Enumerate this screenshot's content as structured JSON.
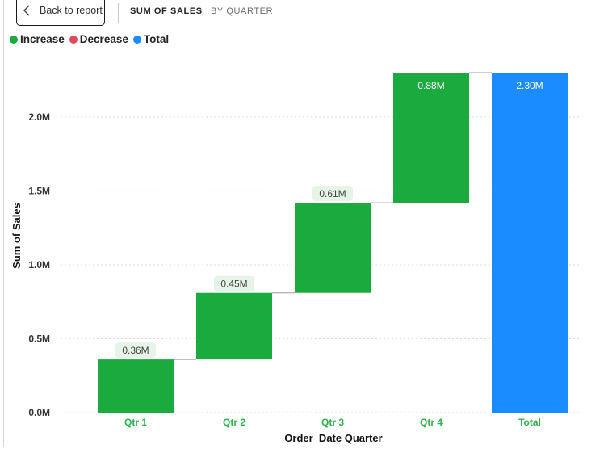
{
  "header": {
    "back_label": "Back to report",
    "crumb_1": "SUM OF SALES",
    "crumb_2": "BY QUARTER"
  },
  "legend": [
    {
      "label": "Increase",
      "color": "#1aaa3e"
    },
    {
      "label": "Decrease",
      "color": "#e04a5a"
    },
    {
      "label": "Total",
      "color": "#1a8cff"
    }
  ],
  "chart_data": {
    "type": "bar",
    "subtype": "waterfall",
    "xlabel": "Order_Date Quarter",
    "ylabel": "Sum of Sales",
    "ylim": [
      0,
      2.3
    ],
    "yticks": [
      {
        "value": 0,
        "label": "0.0M"
      },
      {
        "value": 0.5,
        "label": "0.5M"
      },
      {
        "value": 1.0,
        "label": "1.0M"
      },
      {
        "value": 1.5,
        "label": "1.5M"
      },
      {
        "value": 2.0,
        "label": "2.0M"
      }
    ],
    "grid": true,
    "legend_position": "top-left",
    "colors": {
      "increase": "#1aaa3e",
      "decrease": "#e04a5a",
      "total": "#1a8cff"
    },
    "categories": [
      "Qtr 1",
      "Qtr 2",
      "Qtr 3",
      "Qtr 4",
      "Total"
    ],
    "bars": [
      {
        "category": "Qtr 1",
        "kind": "increase",
        "start": 0.0,
        "end": 0.36,
        "label": "0.36M"
      },
      {
        "category": "Qtr 2",
        "kind": "increase",
        "start": 0.36,
        "end": 0.81,
        "label": "0.45M"
      },
      {
        "category": "Qtr 3",
        "kind": "increase",
        "start": 0.81,
        "end": 1.42,
        "label": "0.61M"
      },
      {
        "category": "Qtr 4",
        "kind": "increase",
        "start": 1.42,
        "end": 2.3,
        "label": "0.88M"
      },
      {
        "category": "Total",
        "kind": "total",
        "start": 0.0,
        "end": 2.3,
        "label": "2.30M"
      }
    ]
  }
}
